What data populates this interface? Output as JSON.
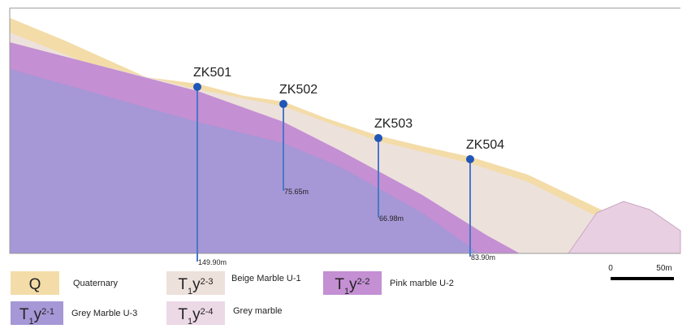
{
  "boreholes": [
    {
      "label": "ZK501",
      "depth": "149.90m"
    },
    {
      "label": "ZK502",
      "depth": "75.65m"
    },
    {
      "label": "ZK503",
      "depth": "66.98m"
    },
    {
      "label": "ZK504",
      "depth": "83.90m"
    }
  ],
  "legend": [
    {
      "symbol": {
        "base": "Q"
      },
      "label": "Quaternary"
    },
    {
      "symbol": {
        "base": "T",
        "sub": "1",
        "base2": "y",
        "sup": "2-3"
      },
      "label": "Beige Marble U-1"
    },
    {
      "symbol": {
        "base": "T",
        "sub": "1",
        "base2": "y",
        "sup": "2-2"
      },
      "label": "Pink marble U-2"
    },
    {
      "symbol": {
        "base": "T",
        "sub": "1",
        "base2": "y",
        "sup": "2-1"
      },
      "label": "Grey Marble U-3"
    },
    {
      "symbol": {
        "base": "T",
        "sub": "1",
        "base2": "y",
        "sup": "2-4"
      },
      "label": "Grey marble"
    }
  ],
  "scale_bar": {
    "start": "0",
    "end": "50m"
  }
}
